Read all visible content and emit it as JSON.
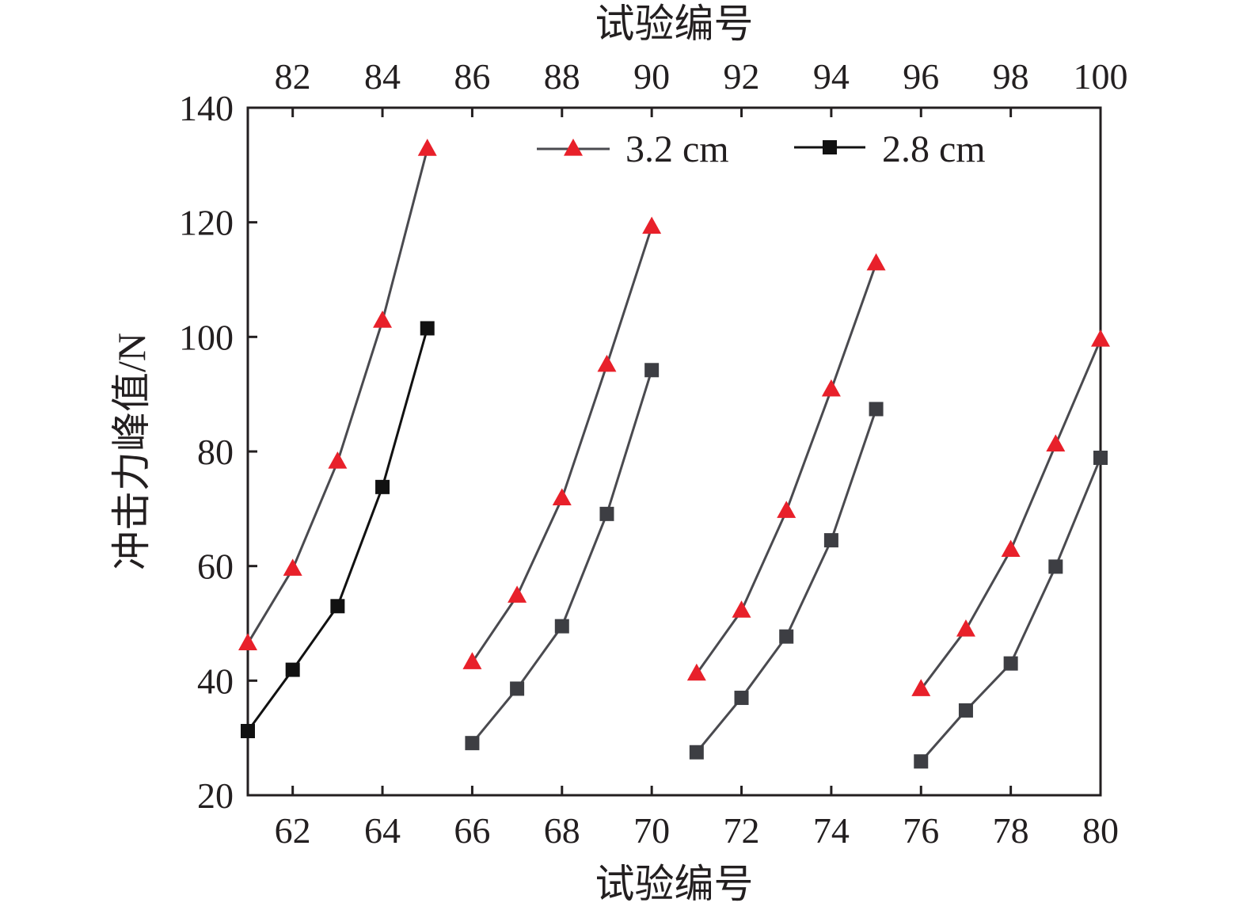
{
  "chart_data": {
    "type": "line",
    "xlabel_bottom": "试验编号",
    "xlabel_top": "试验编号",
    "ylabel": "冲击力峰值/N",
    "xlim_bottom": [
      61,
      80
    ],
    "xlim_top": [
      81,
      100
    ],
    "ylim": [
      20,
      140
    ],
    "xticks_bottom": [
      "62",
      "64",
      "66",
      "68",
      "70",
      "72",
      "74",
      "76",
      "78",
      "80"
    ],
    "xticks_top": [
      "82",
      "84",
      "86",
      "88",
      "90",
      "92",
      "94",
      "96",
      "98",
      "100"
    ],
    "yticks": [
      "20",
      "40",
      "60",
      "80",
      "100",
      "120",
      "140"
    ],
    "grid": false,
    "legend_position": "top-right",
    "colors": {
      "triangle_marker": "#e8202a",
      "square_marker_first": "#111111",
      "square_marker_rest": "#3d3e43",
      "line_first": "#111111",
      "line_rest": "#4a4a4f",
      "axis": "#231f20"
    },
    "series": [
      {
        "name": "3.2 cm",
        "marker": "triangle",
        "groups": [
          {
            "x": [
              61,
              62,
              63,
              64,
              65
            ],
            "y": [
              46.5,
              59.5,
              78.2,
              102.8,
              132.8
            ]
          },
          {
            "x": [
              66,
              67,
              68,
              69,
              70
            ],
            "y": [
              43.2,
              54.8,
              71.8,
              95.1,
              119.2
            ]
          },
          {
            "x": [
              71,
              72,
              73,
              74,
              75
            ],
            "y": [
              41.2,
              52.2,
              69.6,
              90.8,
              112.8
            ]
          },
          {
            "x": [
              76,
              77,
              78,
              79,
              80
            ],
            "y": [
              38.5,
              48.9,
              62.8,
              81.2,
              99.5
            ]
          }
        ]
      },
      {
        "name": "2.8 cm",
        "marker": "square",
        "groups": [
          {
            "x": [
              61,
              62,
              63,
              64,
              65
            ],
            "y": [
              31.2,
              41.9,
              53.0,
              73.8,
              101.5
            ]
          },
          {
            "x": [
              66,
              67,
              68,
              69,
              70
            ],
            "y": [
              29.1,
              38.6,
              49.5,
              69.1,
              94.2
            ]
          },
          {
            "x": [
              71,
              72,
              73,
              74,
              75
            ],
            "y": [
              27.5,
              37.0,
              47.7,
              64.5,
              87.4
            ]
          },
          {
            "x": [
              76,
              77,
              78,
              79,
              80
            ],
            "y": [
              25.9,
              34.8,
              43.0,
              59.9,
              78.9
            ]
          }
        ]
      }
    ]
  }
}
